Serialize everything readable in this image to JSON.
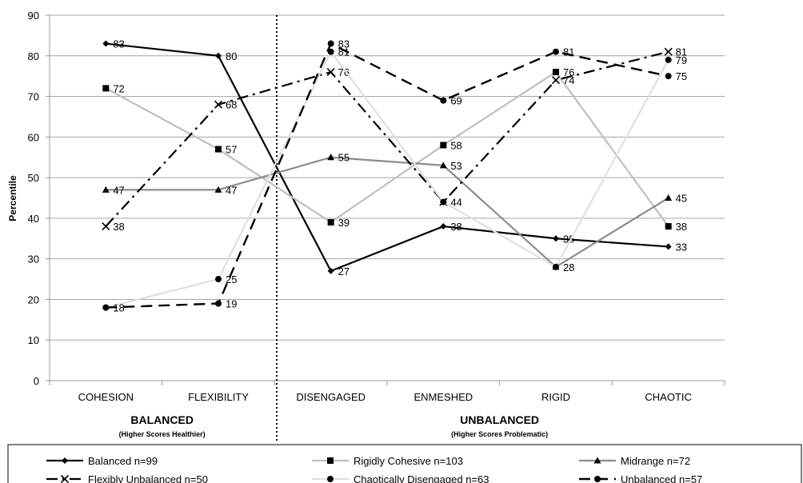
{
  "chart_data": {
    "type": "line",
    "ylabel": "Percentile",
    "ylim": [
      0,
      90
    ],
    "yticks": [
      0,
      10,
      20,
      30,
      40,
      50,
      60,
      70,
      80,
      90
    ],
    "grid": true,
    "categories": [
      "COHESION",
      "FLEXIBILITY",
      "DISENGAGED",
      "ENMESHED",
      "RIGID",
      "CHAOTIC"
    ],
    "groups": [
      {
        "title": "BALANCED",
        "subtitle": "(Higher Scores Healthier)",
        "categories": [
          0,
          1
        ]
      },
      {
        "title": "UNBALANCED",
        "subtitle": "(Higher Scores Problematic)",
        "categories": [
          2,
          3,
          4,
          5
        ]
      }
    ],
    "legend_position": "bottom",
    "series": [
      {
        "name": "Balanced n=99",
        "values": [
          83,
          80,
          27,
          38,
          35,
          33
        ],
        "labels": [
          "83",
          "80",
          "27",
          "38",
          "35",
          "33"
        ],
        "color": "#000000",
        "marker": "diamond",
        "dash": "solid",
        "width": 2.2
      },
      {
        "name": "Rigidly Cohesive n=103",
        "values": [
          72,
          57,
          39,
          58,
          76,
          38
        ],
        "labels": [
          "72",
          "57",
          "39",
          "58",
          "76",
          "38"
        ],
        "color": "#bfbfbf",
        "marker": "square",
        "dash": "solid",
        "width": 2.2
      },
      {
        "name": "Midrange n=72",
        "values": [
          47,
          47,
          55,
          53,
          28,
          45
        ],
        "labels": [
          "47",
          "47",
          "55",
          "53",
          "28",
          "45"
        ],
        "color": "#8c8c8c",
        "marker": "triangle",
        "dash": "solid",
        "width": 2.2
      },
      {
        "name": "Flexibly Unbalanced n=50",
        "values": [
          38,
          68,
          76,
          44,
          74,
          81
        ],
        "labels": [
          "38",
          "68",
          "76",
          "44",
          "74",
          "81"
        ],
        "color": "#000000",
        "marker": "x",
        "dash": "dashdot",
        "width": 2.2
      },
      {
        "name": "Chaotically Disengaged n=63",
        "values": [
          18,
          25,
          81,
          44,
          28,
          79
        ],
        "labels": [
          "18",
          "25",
          "81",
          "",
          "",
          "79"
        ],
        "color": "#e0e0e0",
        "marker": "circle",
        "dash": "solid",
        "width": 2.2
      },
      {
        "name": "Unbalanced n=57",
        "values": [
          18,
          19,
          83,
          69,
          81,
          75
        ],
        "labels": [
          "",
          "19",
          "83",
          "69",
          "81",
          "75"
        ],
        "color": "#000000",
        "marker": "circle",
        "dash": "dashed",
        "width": 2.4
      }
    ]
  }
}
